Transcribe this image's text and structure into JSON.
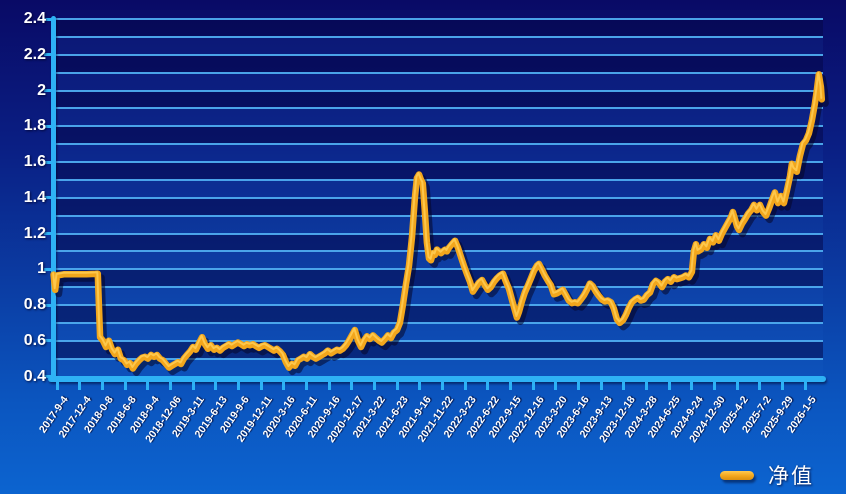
{
  "chart_data": {
    "type": "line",
    "title": "",
    "x_unit": "tick index along date axis (0 = first x label, 33 = last x label)",
    "x_tick_labels": [
      "2017-9-4",
      "2017-12-4",
      "2018-0-8",
      "2018-6-8",
      "2018-9-4",
      "2018-12-06",
      "2019-3-11",
      "2019-6-13",
      "2019-9-6",
      "2019-12-11",
      "2020-3-16",
      "2020-6-11",
      "2020-9-16",
      "2020-12-17",
      "2021-3-22",
      "2021-6-23",
      "2021-9-16",
      "2021-11-22",
      "2022-3-23",
      "2022-6-22",
      "2022-9-15",
      "2022-12-16",
      "2023-3-20",
      "2023-6-16",
      "2023-9-13",
      "2023-12-18",
      "2024-3-28",
      "2024-6-25",
      "2024-9-24",
      "2024-12-30",
      "2025-4-2",
      "2025-7-2",
      "2025-9-29",
      "2026-1-5"
    ],
    "y_tick_labels": [
      "2.4",
      "2.2",
      "2",
      "1.8",
      "1.6",
      "1.4",
      "1.2",
      "1",
      "0.8",
      "0.6",
      "0.4"
    ],
    "ylim": [
      0.4,
      2.4
    ],
    "y_major_step": 0.2,
    "y_minor_step": 0.1,
    "grid": "horizontal gridlines every 0.1 with alternating dark/light blue bands",
    "legend": {
      "position": "bottom-right",
      "label": "净值"
    },
    "series": [
      {
        "name": "净值",
        "color": "#F2A61C",
        "points": [
          [
            -0.15,
            0.97
          ],
          [
            -0.08,
            0.885
          ],
          [
            0.0,
            0.965
          ],
          [
            0.3,
            0.972
          ],
          [
            0.8,
            0.972
          ],
          [
            1.3,
            0.972
          ],
          [
            1.7,
            0.974
          ],
          [
            1.8,
            0.975
          ],
          [
            1.85,
            0.8
          ],
          [
            1.9,
            0.62
          ],
          [
            2.03,
            0.6
          ],
          [
            2.16,
            0.565
          ],
          [
            2.29,
            0.6
          ],
          [
            2.43,
            0.55
          ],
          [
            2.56,
            0.525
          ],
          [
            2.69,
            0.55
          ],
          [
            2.82,
            0.5
          ],
          [
            2.96,
            0.49
          ],
          [
            3.09,
            0.465
          ],
          [
            3.22,
            0.475
          ],
          [
            3.35,
            0.445
          ],
          [
            3.48,
            0.47
          ],
          [
            3.62,
            0.49
          ],
          [
            3.75,
            0.505
          ],
          [
            3.88,
            0.51
          ],
          [
            4.01,
            0.5
          ],
          [
            4.15,
            0.52
          ],
          [
            4.28,
            0.51
          ],
          [
            4.41,
            0.52
          ],
          [
            4.54,
            0.5
          ],
          [
            4.68,
            0.49
          ],
          [
            4.81,
            0.47
          ],
          [
            4.94,
            0.45
          ],
          [
            5.07,
            0.46
          ],
          [
            5.2,
            0.47
          ],
          [
            5.34,
            0.48
          ],
          [
            5.47,
            0.47
          ],
          [
            5.6,
            0.5
          ],
          [
            5.73,
            0.52
          ],
          [
            5.87,
            0.54
          ],
          [
            6.0,
            0.565
          ],
          [
            6.13,
            0.55
          ],
          [
            6.26,
            0.585
          ],
          [
            6.4,
            0.62
          ],
          [
            6.53,
            0.58
          ],
          [
            6.66,
            0.555
          ],
          [
            6.79,
            0.575
          ],
          [
            6.93,
            0.55
          ],
          [
            7.06,
            0.56
          ],
          [
            7.19,
            0.545
          ],
          [
            7.32,
            0.56
          ],
          [
            7.45,
            0.57
          ],
          [
            7.59,
            0.58
          ],
          [
            7.72,
            0.57
          ],
          [
            7.85,
            0.58
          ],
          [
            7.98,
            0.59
          ],
          [
            8.12,
            0.58
          ],
          [
            8.25,
            0.57
          ],
          [
            8.38,
            0.58
          ],
          [
            8.51,
            0.575
          ],
          [
            8.65,
            0.58
          ],
          [
            8.78,
            0.57
          ],
          [
            8.91,
            0.56
          ],
          [
            9.04,
            0.57
          ],
          [
            9.17,
            0.575
          ],
          [
            9.31,
            0.565
          ],
          [
            9.44,
            0.555
          ],
          [
            9.57,
            0.545
          ],
          [
            9.7,
            0.555
          ],
          [
            9.84,
            0.54
          ],
          [
            9.97,
            0.52
          ],
          [
            10.1,
            0.48
          ],
          [
            10.23,
            0.45
          ],
          [
            10.37,
            0.47
          ],
          [
            10.5,
            0.46
          ],
          [
            10.63,
            0.49
          ],
          [
            10.76,
            0.5
          ],
          [
            10.89,
            0.51
          ],
          [
            11.03,
            0.5
          ],
          [
            11.16,
            0.525
          ],
          [
            11.29,
            0.51
          ],
          [
            11.42,
            0.5
          ],
          [
            11.56,
            0.51
          ],
          [
            11.69,
            0.52
          ],
          [
            11.82,
            0.53
          ],
          [
            11.95,
            0.545
          ],
          [
            12.09,
            0.53
          ],
          [
            12.22,
            0.54
          ],
          [
            12.35,
            0.55
          ],
          [
            12.48,
            0.545
          ],
          [
            12.61,
            0.555
          ],
          [
            12.75,
            0.575
          ],
          [
            12.88,
            0.6
          ],
          [
            13.01,
            0.63
          ],
          [
            13.14,
            0.66
          ],
          [
            13.28,
            0.6
          ],
          [
            13.41,
            0.565
          ],
          [
            13.54,
            0.6
          ],
          [
            13.67,
            0.625
          ],
          [
            13.81,
            0.61
          ],
          [
            13.94,
            0.63
          ],
          [
            14.07,
            0.615
          ],
          [
            14.2,
            0.6
          ],
          [
            14.33,
            0.59
          ],
          [
            14.47,
            0.61
          ],
          [
            14.6,
            0.63
          ],
          [
            14.73,
            0.615
          ],
          [
            14.86,
            0.645
          ],
          [
            15.0,
            0.66
          ],
          [
            15.13,
            0.7
          ],
          [
            15.26,
            0.8
          ],
          [
            15.39,
            0.91
          ],
          [
            15.53,
            1.02
          ],
          [
            15.66,
            1.18
          ],
          [
            15.79,
            1.4
          ],
          [
            15.88,
            1.51
          ],
          [
            15.97,
            1.53
          ],
          [
            16.06,
            1.5
          ],
          [
            16.14,
            1.48
          ],
          [
            16.23,
            1.32
          ],
          [
            16.32,
            1.15
          ],
          [
            16.41,
            1.06
          ],
          [
            16.5,
            1.05
          ],
          [
            16.59,
            1.09
          ],
          [
            16.67,
            1.08
          ],
          [
            16.76,
            1.11
          ],
          [
            16.85,
            1.1
          ],
          [
            16.94,
            1.09
          ],
          [
            17.03,
            1.1
          ],
          [
            17.12,
            1.11
          ],
          [
            17.2,
            1.1
          ],
          [
            17.29,
            1.12
          ],
          [
            17.42,
            1.14
          ],
          [
            17.56,
            1.16
          ],
          [
            17.69,
            1.12
          ],
          [
            17.82,
            1.07
          ],
          [
            17.95,
            1.02
          ],
          [
            18.08,
            0.975
          ],
          [
            18.22,
            0.93
          ],
          [
            18.35,
            0.875
          ],
          [
            18.48,
            0.9
          ],
          [
            18.61,
            0.925
          ],
          [
            18.75,
            0.94
          ],
          [
            18.88,
            0.91
          ],
          [
            19.01,
            0.885
          ],
          [
            19.14,
            0.9
          ],
          [
            19.28,
            0.93
          ],
          [
            19.41,
            0.95
          ],
          [
            19.54,
            0.965
          ],
          [
            19.67,
            0.975
          ],
          [
            19.81,
            0.93
          ],
          [
            19.94,
            0.89
          ],
          [
            20.07,
            0.83
          ],
          [
            20.2,
            0.77
          ],
          [
            20.29,
            0.73
          ],
          [
            20.38,
            0.76
          ],
          [
            20.51,
            0.82
          ],
          [
            20.64,
            0.87
          ],
          [
            20.78,
            0.91
          ],
          [
            20.91,
            0.95
          ],
          [
            21.04,
            0.99
          ],
          [
            21.17,
            1.02
          ],
          [
            21.26,
            1.03
          ],
          [
            21.39,
            1.0
          ],
          [
            21.52,
            0.965
          ],
          [
            21.66,
            0.935
          ],
          [
            21.79,
            0.91
          ],
          [
            21.92,
            0.86
          ],
          [
            22.05,
            0.865
          ],
          [
            22.19,
            0.875
          ],
          [
            22.32,
            0.885
          ],
          [
            22.45,
            0.855
          ],
          [
            22.58,
            0.825
          ],
          [
            22.72,
            0.81
          ],
          [
            22.85,
            0.815
          ],
          [
            22.98,
            0.81
          ],
          [
            23.11,
            0.83
          ],
          [
            23.25,
            0.855
          ],
          [
            23.38,
            0.885
          ],
          [
            23.51,
            0.92
          ],
          [
            23.64,
            0.905
          ],
          [
            23.77,
            0.875
          ],
          [
            23.91,
            0.85
          ],
          [
            24.04,
            0.83
          ],
          [
            24.17,
            0.82
          ],
          [
            24.3,
            0.825
          ],
          [
            24.44,
            0.815
          ],
          [
            24.57,
            0.78
          ],
          [
            24.7,
            0.72
          ],
          [
            24.83,
            0.7
          ],
          [
            24.97,
            0.715
          ],
          [
            25.1,
            0.745
          ],
          [
            25.23,
            0.785
          ],
          [
            25.36,
            0.815
          ],
          [
            25.5,
            0.83
          ],
          [
            25.63,
            0.84
          ],
          [
            25.76,
            0.825
          ],
          [
            25.89,
            0.83
          ],
          [
            26.02,
            0.855
          ],
          [
            26.16,
            0.87
          ],
          [
            26.29,
            0.915
          ],
          [
            26.42,
            0.935
          ],
          [
            26.55,
            0.925
          ],
          [
            26.69,
            0.9
          ],
          [
            26.82,
            0.93
          ],
          [
            26.95,
            0.945
          ],
          [
            27.08,
            0.93
          ],
          [
            27.22,
            0.955
          ],
          [
            27.35,
            0.945
          ],
          [
            27.48,
            0.95
          ],
          [
            27.61,
            0.955
          ],
          [
            27.74,
            0.965
          ],
          [
            27.88,
            0.955
          ],
          [
            28.01,
            0.985
          ],
          [
            28.1,
            1.1
          ],
          [
            28.19,
            1.14
          ],
          [
            28.28,
            1.1
          ],
          [
            28.41,
            1.11
          ],
          [
            28.54,
            1.14
          ],
          [
            28.67,
            1.12
          ],
          [
            28.81,
            1.17
          ],
          [
            28.94,
            1.15
          ],
          [
            29.07,
            1.19
          ],
          [
            29.2,
            1.16
          ],
          [
            29.34,
            1.2
          ],
          [
            29.47,
            1.23
          ],
          [
            29.6,
            1.26
          ],
          [
            29.73,
            1.29
          ],
          [
            29.82,
            1.32
          ],
          [
            29.91,
            1.28
          ],
          [
            30.0,
            1.24
          ],
          [
            30.09,
            1.22
          ],
          [
            30.22,
            1.255
          ],
          [
            30.35,
            1.28
          ],
          [
            30.49,
            1.31
          ],
          [
            30.62,
            1.33
          ],
          [
            30.75,
            1.36
          ],
          [
            30.88,
            1.33
          ],
          [
            31.01,
            1.36
          ],
          [
            31.15,
            1.32
          ],
          [
            31.28,
            1.3
          ],
          [
            31.41,
            1.34
          ],
          [
            31.54,
            1.385
          ],
          [
            31.67,
            1.43
          ],
          [
            31.81,
            1.37
          ],
          [
            31.94,
            1.41
          ],
          [
            32.07,
            1.37
          ],
          [
            32.2,
            1.44
          ],
          [
            32.34,
            1.52
          ],
          [
            32.42,
            1.59
          ],
          [
            32.51,
            1.56
          ],
          [
            32.64,
            1.545
          ],
          [
            32.77,
            1.63
          ],
          [
            32.91,
            1.7
          ],
          [
            33.04,
            1.72
          ],
          [
            33.17,
            1.76
          ],
          [
            33.3,
            1.83
          ],
          [
            33.43,
            1.92
          ],
          [
            33.52,
            2.0
          ],
          [
            33.61,
            2.09
          ],
          [
            33.7,
            2.02
          ],
          [
            33.74,
            1.95
          ]
        ]
      }
    ]
  },
  "colors": {
    "line": "#F2A61C",
    "line_highlight": "#FFCC55",
    "line_shadow": "rgba(5,5,40,0.55)",
    "axis": "#2EB2F5",
    "gridline": "#5FBFF5",
    "band_dark": "#070D66",
    "band_light": "#0B3FA6",
    "text": "#FFFFFF"
  }
}
